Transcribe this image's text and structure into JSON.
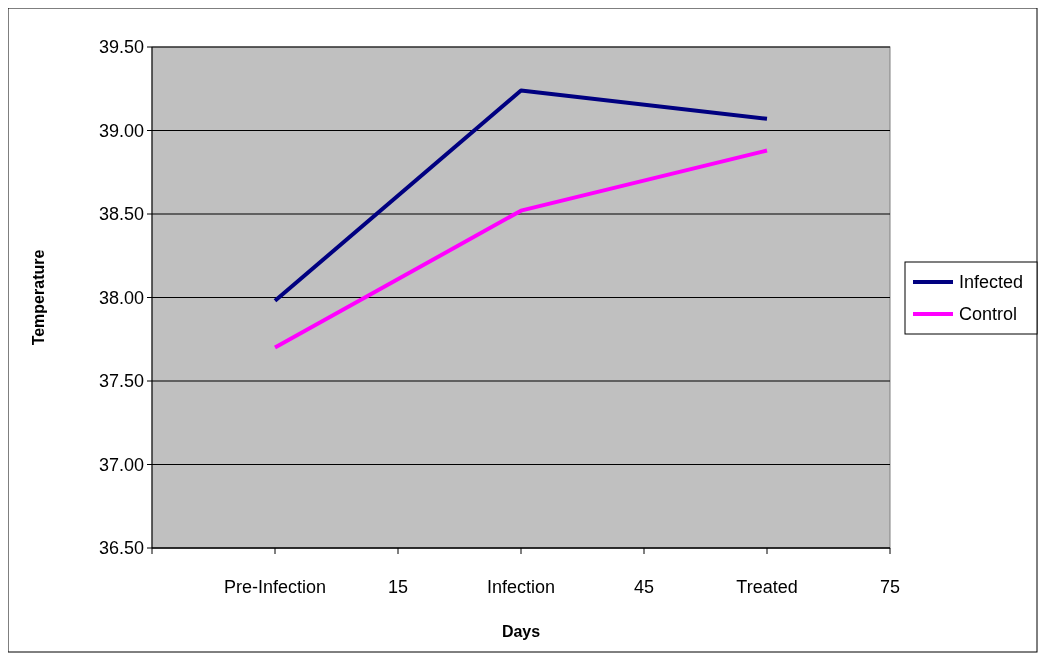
{
  "chart_data": {
    "type": "line",
    "xlabel": "Days",
    "ylabel": "Temperature",
    "xlim": [
      -15,
      75
    ],
    "xticks": [
      {
        "value": -15,
        "label": null
      },
      {
        "value": 0,
        "label": "Pre-Infection"
      },
      15,
      {
        "value": 30,
        "label": "Infection"
      },
      45,
      {
        "value": 60,
        "label": "Treated"
      },
      75
    ],
    "ylim": [
      36.5,
      39.5
    ],
    "yticks": [
      {
        "value": 36.5,
        "label": "36.50"
      },
      {
        "value": 37,
        "label": "37.00"
      },
      {
        "value": 37.5,
        "label": "37.50"
      },
      {
        "value": 38,
        "label": "38.00"
      },
      {
        "value": 38.5,
        "label": "38.50"
      },
      {
        "value": 39,
        "label": "39.00"
      },
      {
        "value": 39.5,
        "label": "39.50"
      }
    ],
    "x": [
      0,
      30,
      60
    ],
    "series": [
      {
        "name": "Infected",
        "color": "#000080",
        "values": [
          37.98,
          39.24,
          39.07
        ]
      },
      {
        "name": "Control",
        "color": "#ff00ff",
        "values": [
          37.7,
          38.52,
          38.88
        ]
      }
    ],
    "grid": "y",
    "legend": "right",
    "marker": "none",
    "line_style": "solid"
  }
}
